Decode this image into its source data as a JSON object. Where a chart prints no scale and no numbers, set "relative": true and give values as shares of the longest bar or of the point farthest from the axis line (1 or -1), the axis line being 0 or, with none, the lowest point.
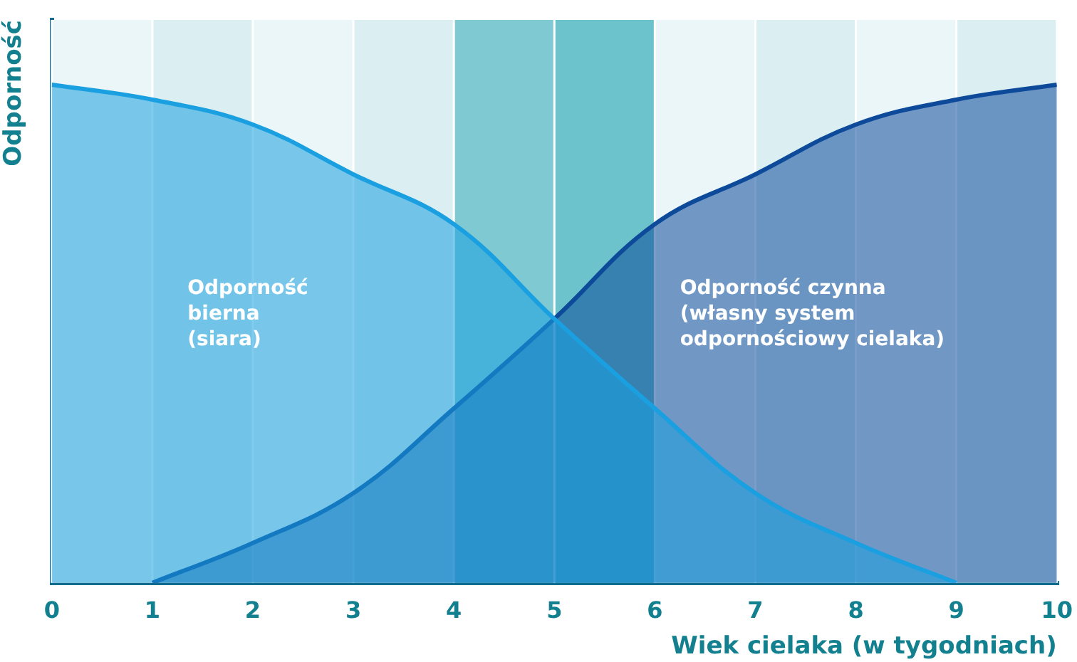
{
  "chart_data": {
    "type": "area",
    "relative": true,
    "xlabel": "Wiek cielaka (w tygodniach)",
    "ylabel": "Odporność",
    "x": [
      0,
      1,
      2,
      3,
      4,
      5,
      6,
      7,
      8,
      9,
      10
    ],
    "xlim": [
      0,
      10
    ],
    "xticks": [
      0,
      1,
      2,
      3,
      4,
      5,
      6,
      7,
      8,
      9,
      10
    ],
    "grid": "x",
    "legend": false,
    "marker": "none",
    "series": [
      {
        "name": "Odporność bierna (siara)",
        "color": "#1aa0e0",
        "values": [
          1,
          0.97,
          0.92,
          0.82,
          0.72,
          0.53,
          0.35,
          0.18,
          0.08,
          0,
          null
        ]
      },
      {
        "name": "Odporność czynna (własny system odpornościowy cielaka)",
        "color": "#0d4a9a",
        "values": [
          null,
          0,
          0.08,
          0.18,
          0.35,
          0.53,
          0.72,
          0.82,
          0.92,
          0.97,
          1
        ]
      }
    ],
    "bands": [
      {
        "axis": "x",
        "from": 0,
        "to": 1,
        "color": "#eaf6f8"
      },
      {
        "axis": "x",
        "from": 1,
        "to": 2,
        "color": "#dbeef1"
      },
      {
        "axis": "x",
        "from": 2,
        "to": 3,
        "color": "#eaf6f8"
      },
      {
        "axis": "x",
        "from": 3,
        "to": 4,
        "color": "#dbeef1"
      },
      {
        "axis": "x",
        "from": 4,
        "to": 5,
        "color": "#7fc9d2"
      },
      {
        "axis": "x",
        "from": 5,
        "to": 6,
        "color": "#6cc3cc"
      },
      {
        "axis": "x",
        "from": 6,
        "to": 7,
        "color": "#eaf6f8"
      },
      {
        "axis": "x",
        "from": 7,
        "to": 8,
        "color": "#dbeef1"
      },
      {
        "axis": "x",
        "from": 8,
        "to": 9,
        "color": "#eaf6f8"
      },
      {
        "axis": "x",
        "from": 9,
        "to": 10,
        "color": "#dbeef1"
      }
    ]
  }
}
